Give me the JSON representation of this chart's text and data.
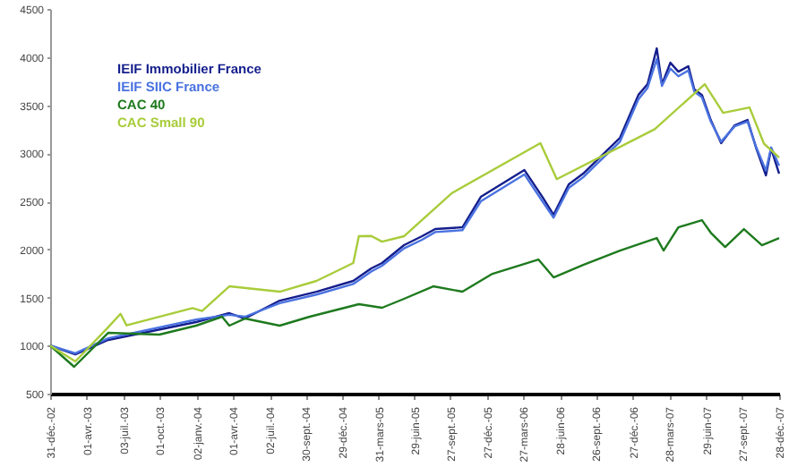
{
  "chart_data": {
    "type": "line",
    "xlim": [
      "2002-12-31",
      "2007-12-28"
    ],
    "xticks": [
      {
        "value": "2002-12-31",
        "label": "31-déc.-02"
      },
      {
        "value": "2003-04-01",
        "label": "01-avr.-03"
      },
      {
        "value": "2003-07-03",
        "label": "03-juil.-03"
      },
      {
        "value": "2003-10-01",
        "label": "01-oct.-03"
      },
      {
        "value": "2004-01-02",
        "label": "02-janv.-04"
      },
      {
        "value": "2004-04-01",
        "label": "01-avr.-04"
      },
      {
        "value": "2004-07-02",
        "label": "02-juil.-04"
      },
      {
        "value": "2004-09-30",
        "label": "30-sept.-04"
      },
      {
        "value": "2004-12-29",
        "label": "29-déc.-04"
      },
      {
        "value": "2005-03-31",
        "label": "31-mars-05"
      },
      {
        "value": "2005-06-29",
        "label": "29-juin-05"
      },
      {
        "value": "2005-09-27",
        "label": "27-sept.-05"
      },
      {
        "value": "2005-12-27",
        "label": "27-déc.-05"
      },
      {
        "value": "2006-03-27",
        "label": "27-mars-06"
      },
      {
        "value": "2006-06-28",
        "label": "28-juin-06"
      },
      {
        "value": "2006-09-26",
        "label": "26-sept.-06"
      },
      {
        "value": "2006-12-27",
        "label": "27-déc.-06"
      },
      {
        "value": "2007-03-28",
        "label": "28-mars-07"
      },
      {
        "value": "2007-06-29",
        "label": "29-juin-07"
      },
      {
        "value": "2007-09-27",
        "label": "27-sept.-07"
      },
      {
        "value": "2007-12-28",
        "label": "28-déc.-07"
      }
    ],
    "ylim": [
      500,
      4500
    ],
    "yticks": [
      500,
      1000,
      1500,
      2000,
      2500,
      3000,
      3500,
      4000,
      4500
    ],
    "grid": false,
    "legend": "top left",
    "marker": "none",
    "line_style": "solid",
    "series": [
      {
        "name": "IEIF Immobilier France",
        "color": "#141e8c",
        "x": [
          "2002-12-31",
          "2003-03-04",
          "2003-05-25",
          "2003-12-31",
          "2004-03-23",
          "2004-05-01",
          "2004-07-27",
          "2004-10-27",
          "2005-01-27",
          "2005-03-13",
          "2005-04-09",
          "2005-06-03",
          "2005-07-18",
          "2005-08-20",
          "2005-10-27",
          "2005-12-12",
          "2006-03-31",
          "2006-05-15",
          "2006-06-12",
          "2006-07-20",
          "2006-08-25",
          "2006-09-26",
          "2006-11-25",
          "2007-01-10",
          "2007-02-02",
          "2007-02-25",
          "2007-03-10",
          "2007-03-31",
          "2007-04-20",
          "2007-05-15",
          "2007-05-30",
          "2007-06-18",
          "2007-07-10",
          "2007-08-05",
          "2007-09-08",
          "2007-10-10",
          "2007-11-01",
          "2007-11-25",
          "2007-12-08",
          "2007-12-28"
        ],
        "values": [
          1000,
          909,
          1058,
          1244,
          1337,
          1281,
          1467,
          1560,
          1672,
          1802,
          1858,
          2044,
          2137,
          2211,
          2230,
          2546,
          2825,
          2546,
          2360,
          2676,
          2788,
          2918,
          3160,
          3606,
          3718,
          4090,
          3718,
          3941,
          3848,
          3904,
          3662,
          3606,
          3346,
          3104,
          3290,
          3346,
          3048,
          2769,
          3048,
          2788
        ]
      },
      {
        "name": "IEIF SIIC France",
        "color": "#4a72e0",
        "x": [
          "2002-12-31",
          "2003-03-04",
          "2003-05-25",
          "2003-12-31",
          "2004-03-23",
          "2004-05-01",
          "2004-07-27",
          "2004-10-27",
          "2005-01-27",
          "2005-03-13",
          "2005-04-09",
          "2005-06-03",
          "2005-07-18",
          "2005-08-20",
          "2005-10-27",
          "2005-12-12",
          "2006-03-31",
          "2006-05-15",
          "2006-06-12",
          "2006-07-20",
          "2006-08-25",
          "2006-09-26",
          "2006-11-25",
          "2007-01-10",
          "2007-02-02",
          "2007-02-25",
          "2007-03-10",
          "2007-03-31",
          "2007-04-20",
          "2007-05-15",
          "2007-05-30",
          "2007-06-18",
          "2007-07-10",
          "2007-08-05",
          "2007-09-08",
          "2007-10-10",
          "2007-11-01",
          "2007-11-25",
          "2007-12-08",
          "2007-12-28"
        ],
        "values": [
          1000,
          920,
          1075,
          1270,
          1320,
          1300,
          1440,
          1530,
          1640,
          1770,
          1830,
          2010,
          2100,
          2180,
          2200,
          2500,
          2780,
          2500,
          2330,
          2640,
          2750,
          2880,
          3120,
          3560,
          3680,
          3980,
          3700,
          3880,
          3800,
          3860,
          3640,
          3580,
          3330,
          3120,
          3280,
          3330,
          3060,
          2820,
          3060,
          2870
        ]
      },
      {
        "name": "CAC 40",
        "color": "#1e7a1e",
        "x": [
          "2002-12-31",
          "2003-03-01",
          "2003-05-25",
          "2003-09-30",
          "2003-12-31",
          "2004-03-05",
          "2004-03-23",
          "2004-05-01",
          "2004-07-27",
          "2004-10-10",
          "2005-02-10",
          "2005-04-09",
          "2005-06-03",
          "2005-08-15",
          "2005-10-27",
          "2006-01-10",
          "2006-05-05",
          "2006-06-12",
          "2006-08-25",
          "2006-11-25",
          "2007-02-25",
          "2007-03-14",
          "2007-04-20",
          "2007-06-18",
          "2007-07-10",
          "2007-08-15",
          "2007-10-01",
          "2007-11-15",
          "2007-12-28"
        ],
        "values": [
          1000,
          779,
          1132,
          1114,
          1207,
          1300,
          1207,
          1281,
          1207,
          1300,
          1430,
          1393,
          1486,
          1616,
          1560,
          1746,
          1895,
          1709,
          1839,
          1988,
          2118,
          1988,
          2230,
          2304,
          2174,
          2025,
          2211,
          2044,
          2118
        ]
      },
      {
        "name": "CAC Small 90",
        "color": "#a8cc3a",
        "x": [
          "2002-12-31",
          "2003-03-04",
          "2003-05-25",
          "2003-06-25",
          "2003-07-10",
          "2003-12-22",
          "2004-01-15",
          "2004-03-23",
          "2004-07-27",
          "2004-10-27",
          "2005-01-27",
          "2005-02-10",
          "2005-03-13",
          "2005-04-09",
          "2005-06-03",
          "2005-09-30",
          "2006-05-10",
          "2006-06-20",
          "2007-02-20",
          "2007-06-25",
          "2007-08-10",
          "2007-10-15",
          "2007-11-20",
          "2007-12-28"
        ],
        "values": [
          1000,
          835,
          1190,
          1330,
          1210,
          1390,
          1360,
          1616,
          1560,
          1672,
          1858,
          2137,
          2140,
          2080,
          2137,
          2583,
          3104,
          2730,
          3250,
          3718,
          3420,
          3476,
          3100,
          2955
        ]
      }
    ]
  }
}
